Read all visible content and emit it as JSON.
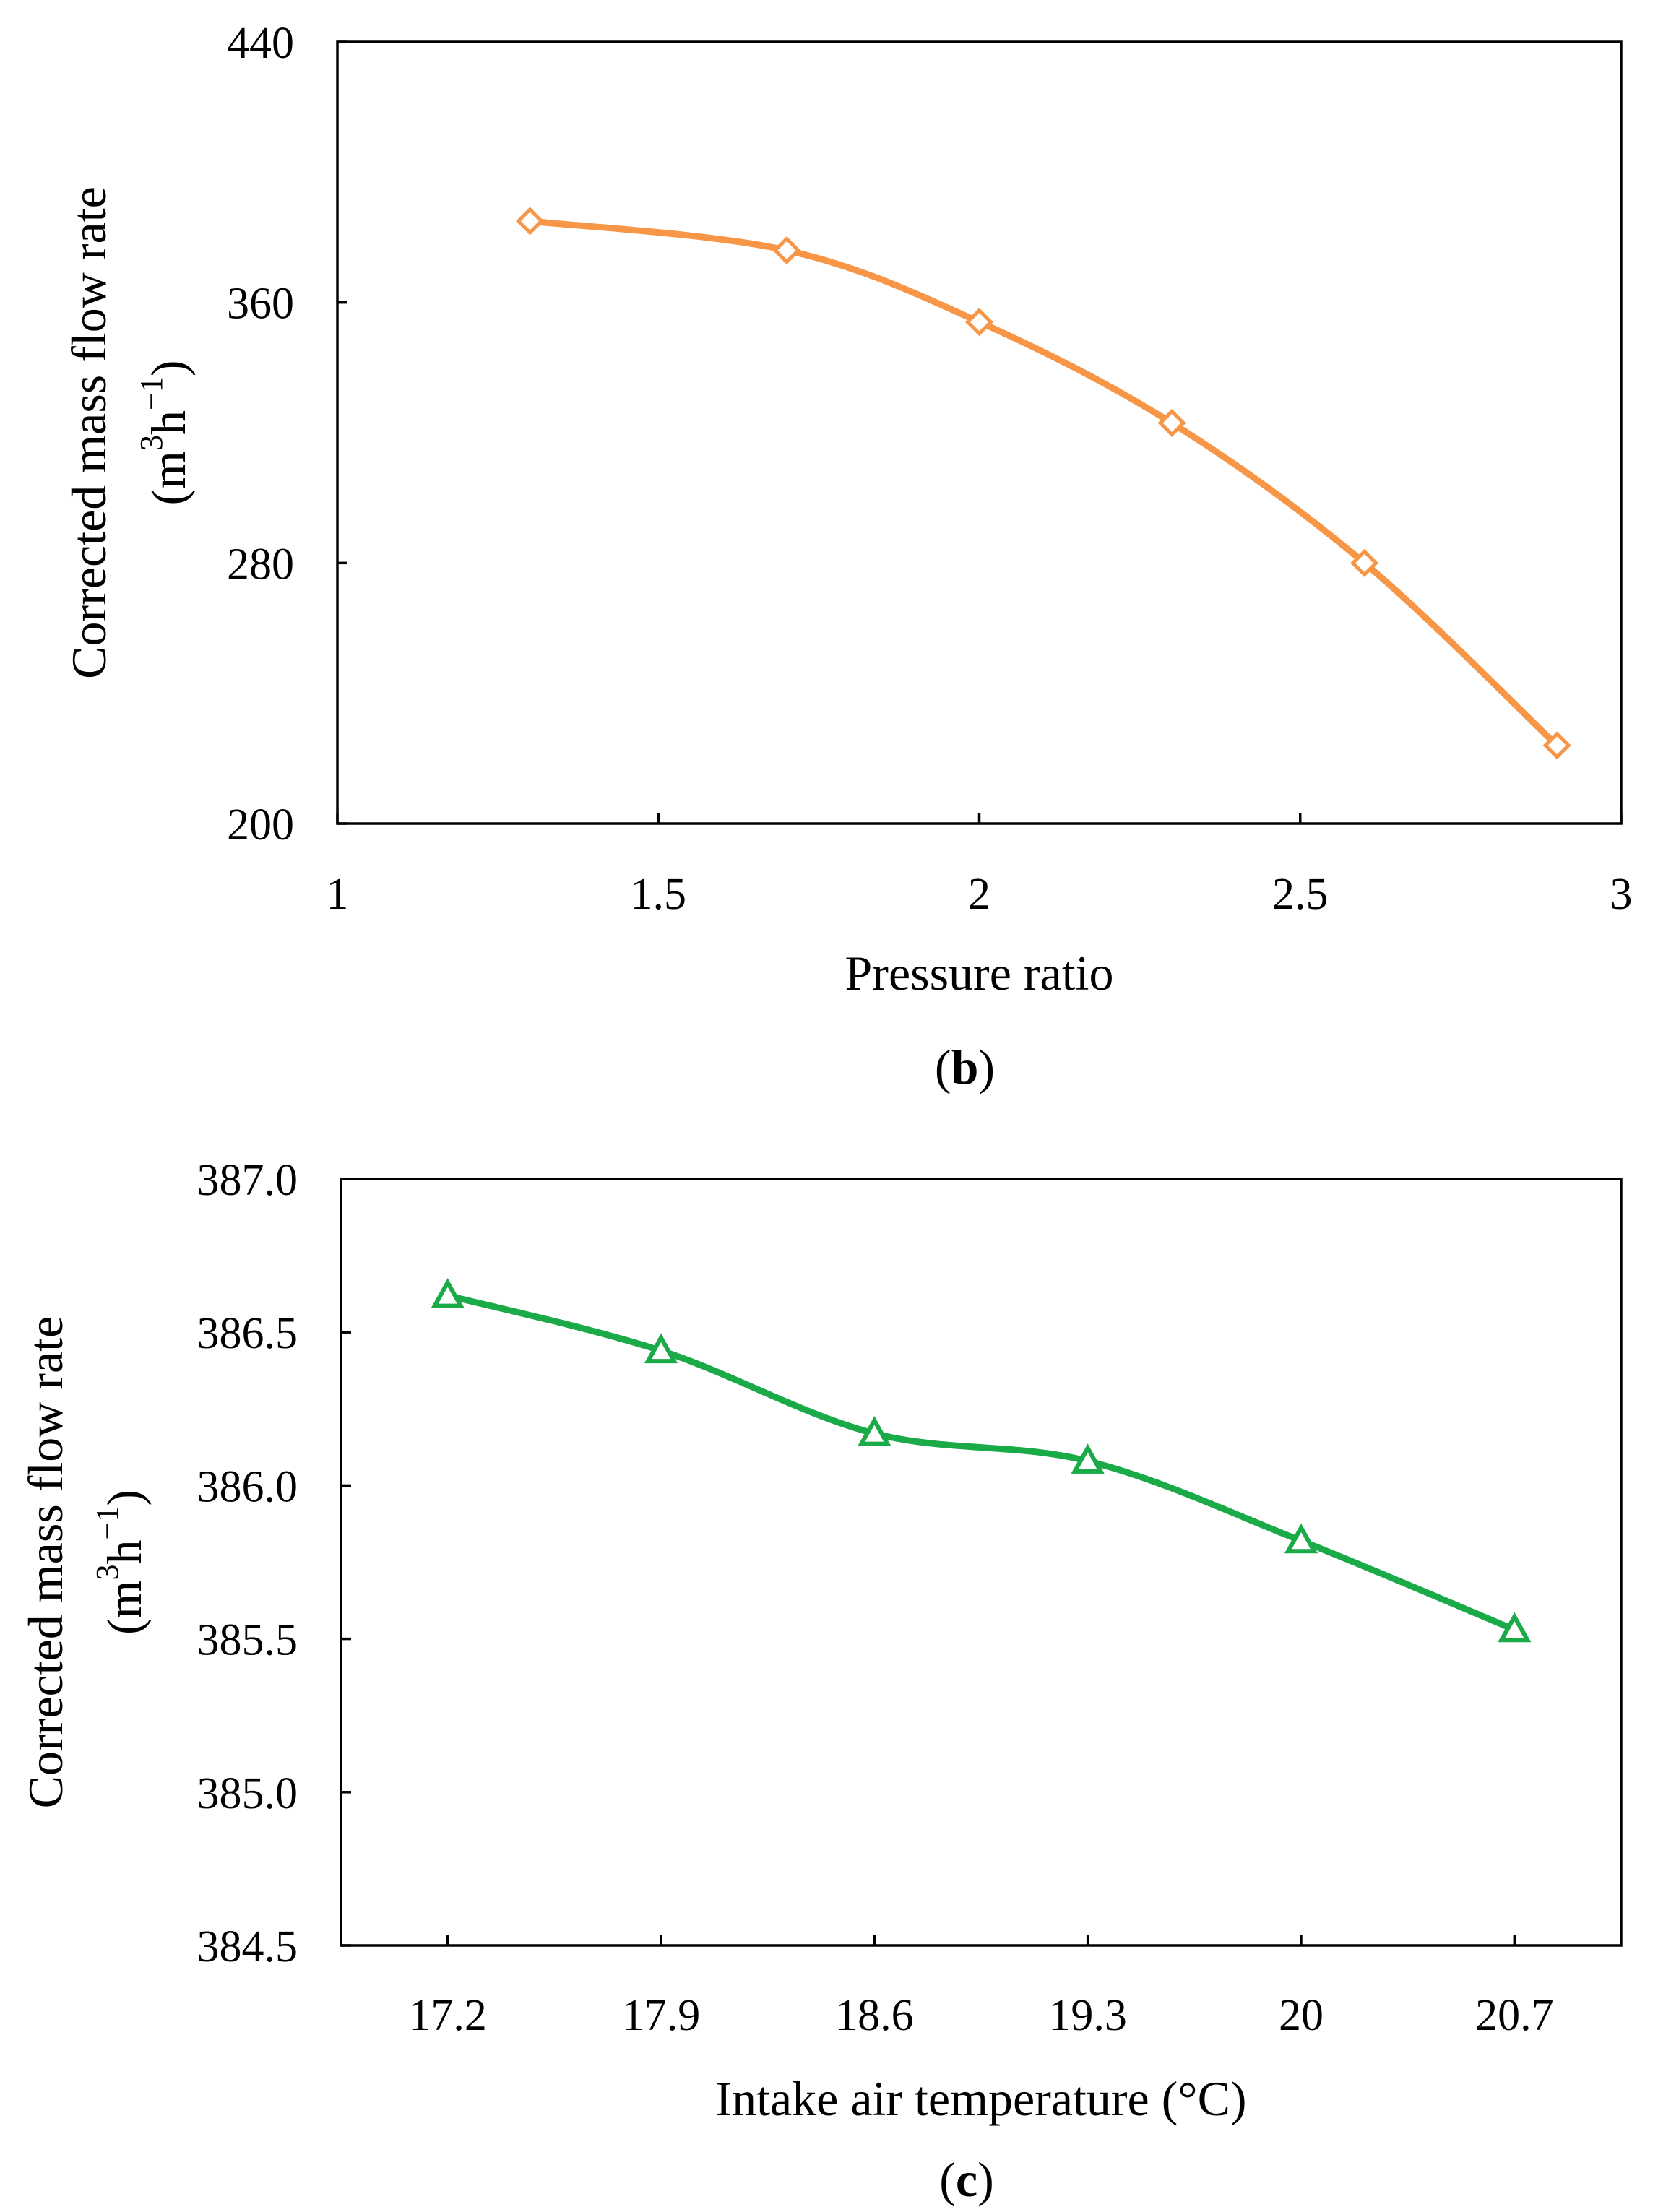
{
  "chart_data": [
    {
      "type": "line",
      "panel_label": "b",
      "title": "",
      "xlabel": "Pressure ratio",
      "ylabel_main": "Corrected mass flow rate",
      "ylabel_unit": {
        "open": "(m",
        "sup1": "3",
        "mid": "h",
        "sup2": "−1",
        "close": ")"
      },
      "xlim": [
        1,
        3
      ],
      "ylim": [
        200,
        440
      ],
      "x_ticks": [
        1,
        1.5,
        2,
        2.5,
        3
      ],
      "x_tick_labels": [
        "1",
        "1.5",
        "2",
        "2.5",
        "3"
      ],
      "y_ticks": [
        200,
        280,
        360,
        440
      ],
      "y_tick_labels": [
        "200",
        "280",
        "360",
        "440"
      ],
      "grid": false,
      "marker": "diamond",
      "color": "#F79646",
      "series": [
        {
          "name": "Corrected mass flow rate",
          "x": [
            1.3,
            1.7,
            2.0,
            2.3,
            2.6,
            2.9
          ],
          "values": [
            385,
            376,
            354,
            323,
            280,
            224
          ]
        }
      ]
    },
    {
      "type": "line",
      "panel_label": "c",
      "title": "",
      "xlabel": "Intake air temperature (°C)",
      "ylabel_main": "Corrected mass flow rate",
      "ylabel_unit": {
        "open": "(m",
        "sup1": "3",
        "mid": "h",
        "sup2": "−1",
        "close": ")"
      },
      "xlim": [
        16.85,
        21.05
      ],
      "ylim": [
        384.5,
        387.0
      ],
      "x_ticks": [
        17.2,
        17.9,
        18.6,
        19.3,
        20,
        20.7
      ],
      "x_tick_labels": [
        "17.2",
        "17.9",
        "18.6",
        "19.3",
        "20",
        "20.7"
      ],
      "y_ticks": [
        384.5,
        385.0,
        385.5,
        386.0,
        386.5,
        387.0
      ],
      "y_tick_labels": [
        "384.5",
        "385.0",
        "385.5",
        "386.0",
        "386.5",
        "387.0"
      ],
      "grid": false,
      "marker": "triangle",
      "color": "#1BAA48",
      "series": [
        {
          "name": "Corrected mass flow rate",
          "x": [
            17.2,
            17.9,
            18.6,
            19.3,
            20.0,
            20.7
          ],
          "values": [
            386.62,
            386.44,
            386.17,
            386.08,
            385.82,
            385.53
          ]
        }
      ]
    }
  ]
}
